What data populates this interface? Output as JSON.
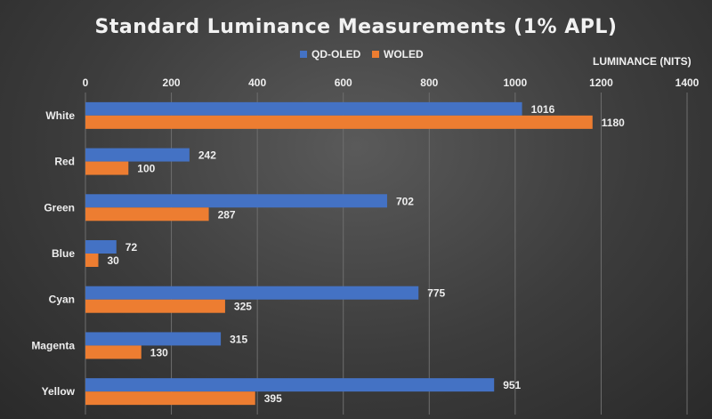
{
  "colors": {
    "qd_oled": "#4472c4",
    "woled": "#ed7d31"
  },
  "chart_data": {
    "type": "bar",
    "orientation": "horizontal",
    "title": "Standard Luminance Measurements (1% APL)",
    "xlabel": "LUMINANCE (NITS)",
    "ylabel": "",
    "xlim": [
      0,
      1400
    ],
    "xticks": [
      0,
      200,
      400,
      600,
      800,
      1000,
      1200,
      1400
    ],
    "x_axis_position": "top",
    "grid": true,
    "legend_position": "top",
    "categories": [
      "White",
      "Red",
      "Green",
      "Blue",
      "Cyan",
      "Magenta",
      "Yellow"
    ],
    "series": [
      {
        "name": "QD-OLED",
        "values": [
          1016,
          242,
          702,
          72,
          775,
          315,
          951
        ]
      },
      {
        "name": "WOLED",
        "values": [
          1180,
          100,
          287,
          30,
          325,
          130,
          395
        ]
      }
    ]
  }
}
